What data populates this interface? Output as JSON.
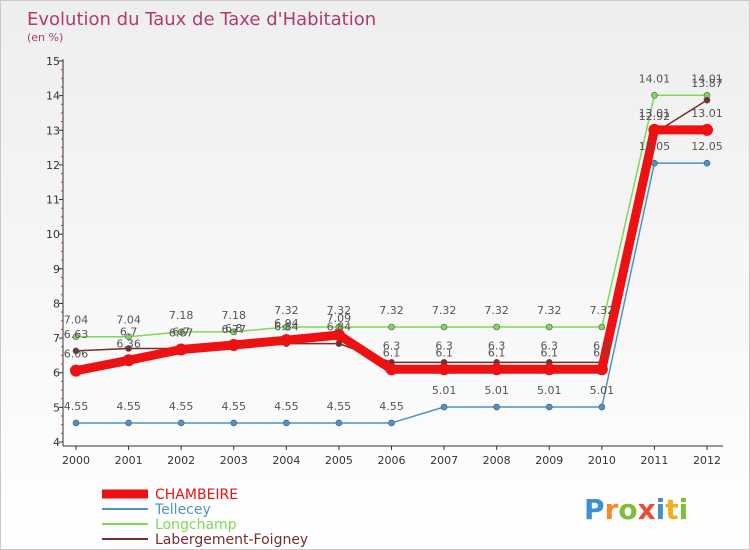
{
  "chart_data": {
    "type": "line",
    "title": "Evolution du Taux de Taxe d'Habitation",
    "subtitle": "(en %)",
    "xlabel": "",
    "ylabel": "",
    "categories": [
      "2000",
      "2001",
      "2002",
      "2003",
      "2004",
      "2005",
      "2006",
      "2007",
      "2008",
      "2009",
      "2010",
      "2011",
      "2012"
    ],
    "ylim": [
      4,
      15
    ],
    "yticks": [
      "4",
      "5",
      "6",
      "7",
      "8",
      "9",
      "10",
      "11",
      "12",
      "13",
      "14",
      "15"
    ],
    "series": [
      {
        "name": "CHAMBEIRE",
        "color": "#ee1111",
        "emphasis": true,
        "values": [
          6.06,
          6.36,
          6.67,
          6.8,
          6.94,
          7.09,
          6.1,
          6.1,
          6.1,
          6.1,
          6.1,
          13.01,
          13.01
        ],
        "labels": [
          "6.06",
          "6.36",
          "6.67",
          "6.8",
          "6.94",
          "7.09",
          "6.1",
          "6.1",
          "6.1",
          "6.1",
          "6.1",
          "13.01",
          "13.01"
        ]
      },
      {
        "name": "Tellecey",
        "color": "#4f92c9",
        "emphasis": false,
        "values": [
          4.55,
          4.55,
          4.55,
          4.55,
          4.55,
          4.55,
          4.55,
          5.01,
          5.01,
          5.01,
          5.01,
          12.05,
          12.05
        ],
        "labels": [
          "4.55",
          "4.55",
          "4.55",
          "4.55",
          "4.55",
          "4.55",
          "4.55",
          "5.01",
          "5.01",
          "5.01",
          "5.01",
          "12.05",
          "12.05"
        ]
      },
      {
        "name": "Longchamp",
        "color": "#7ed957",
        "emphasis": false,
        "values": [
          7.04,
          7.04,
          7.18,
          7.18,
          7.32,
          7.32,
          7.32,
          7.32,
          7.32,
          7.32,
          7.32,
          14.01,
          14.01
        ],
        "labels": [
          "7.04",
          "7.04",
          "7.18",
          "7.18",
          "7.32",
          "7.32",
          "7.32",
          "7.32",
          "7.32",
          "7.32",
          "7.32",
          "14.01",
          "14.01"
        ]
      },
      {
        "name": "Labergement-Foigney",
        "color": "#7a2b2b",
        "emphasis": false,
        "values": [
          6.63,
          6.7,
          6.7,
          6.77,
          6.84,
          6.84,
          6.3,
          6.3,
          6.3,
          6.3,
          6.3,
          12.92,
          13.87
        ],
        "labels": [
          "6.63",
          "6.7",
          "6.7",
          "6.77",
          "6.84",
          "6.84",
          "6.3",
          "6.3",
          "6.3",
          "6.3",
          "6.3",
          "12.92",
          "13.87"
        ]
      }
    ],
    "grid": false,
    "legend": "bottom-left"
  },
  "brand": {
    "text": "Proxiti"
  }
}
